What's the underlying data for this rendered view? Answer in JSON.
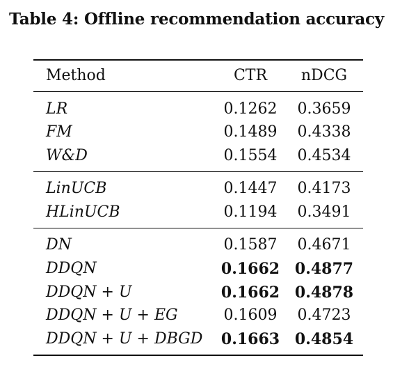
{
  "caption": "Table 4: Offline recommendation accuracy",
  "header": {
    "method": "Method",
    "ctr": "CTR",
    "ndcg": "nDCG"
  },
  "groups": [
    {
      "rows": [
        {
          "method": "LR",
          "ctr": "0.1262",
          "ndcg": "0.3659",
          "ctr_bold": false,
          "ndcg_bold": false
        },
        {
          "method": "FM",
          "ctr": "0.1489",
          "ndcg": "0.4338",
          "ctr_bold": false,
          "ndcg_bold": false
        },
        {
          "method": "W&D",
          "ctr": "0.1554",
          "ndcg": "0.4534",
          "ctr_bold": false,
          "ndcg_bold": false
        }
      ]
    },
    {
      "rows": [
        {
          "method": "LinUCB",
          "ctr": "0.1447",
          "ndcg": "0.4173",
          "ctr_bold": false,
          "ndcg_bold": false
        },
        {
          "method": "HLinUCB",
          "ctr": "0.1194",
          "ndcg": "0.3491",
          "ctr_bold": false,
          "ndcg_bold": false
        }
      ]
    },
    {
      "rows": [
        {
          "method": "DN",
          "ctr": "0.1587",
          "ndcg": "0.4671",
          "ctr_bold": false,
          "ndcg_bold": false
        },
        {
          "method": "DDQN",
          "ctr": "0.1662",
          "ndcg": "0.4877",
          "ctr_bold": true,
          "ndcg_bold": true
        },
        {
          "method": "DDQN + U",
          "ctr": "0.1662",
          "ndcg": "0.4878",
          "ctr_bold": true,
          "ndcg_bold": true
        },
        {
          "method": "DDQN + U + EG",
          "ctr": "0.1609",
          "ndcg": "0.4723",
          "ctr_bold": false,
          "ndcg_bold": false
        },
        {
          "method": "DDQN + U + DBGD",
          "ctr": "0.1663",
          "ndcg": "0.4854",
          "ctr_bold": true,
          "ndcg_bold": true
        }
      ]
    }
  ]
}
